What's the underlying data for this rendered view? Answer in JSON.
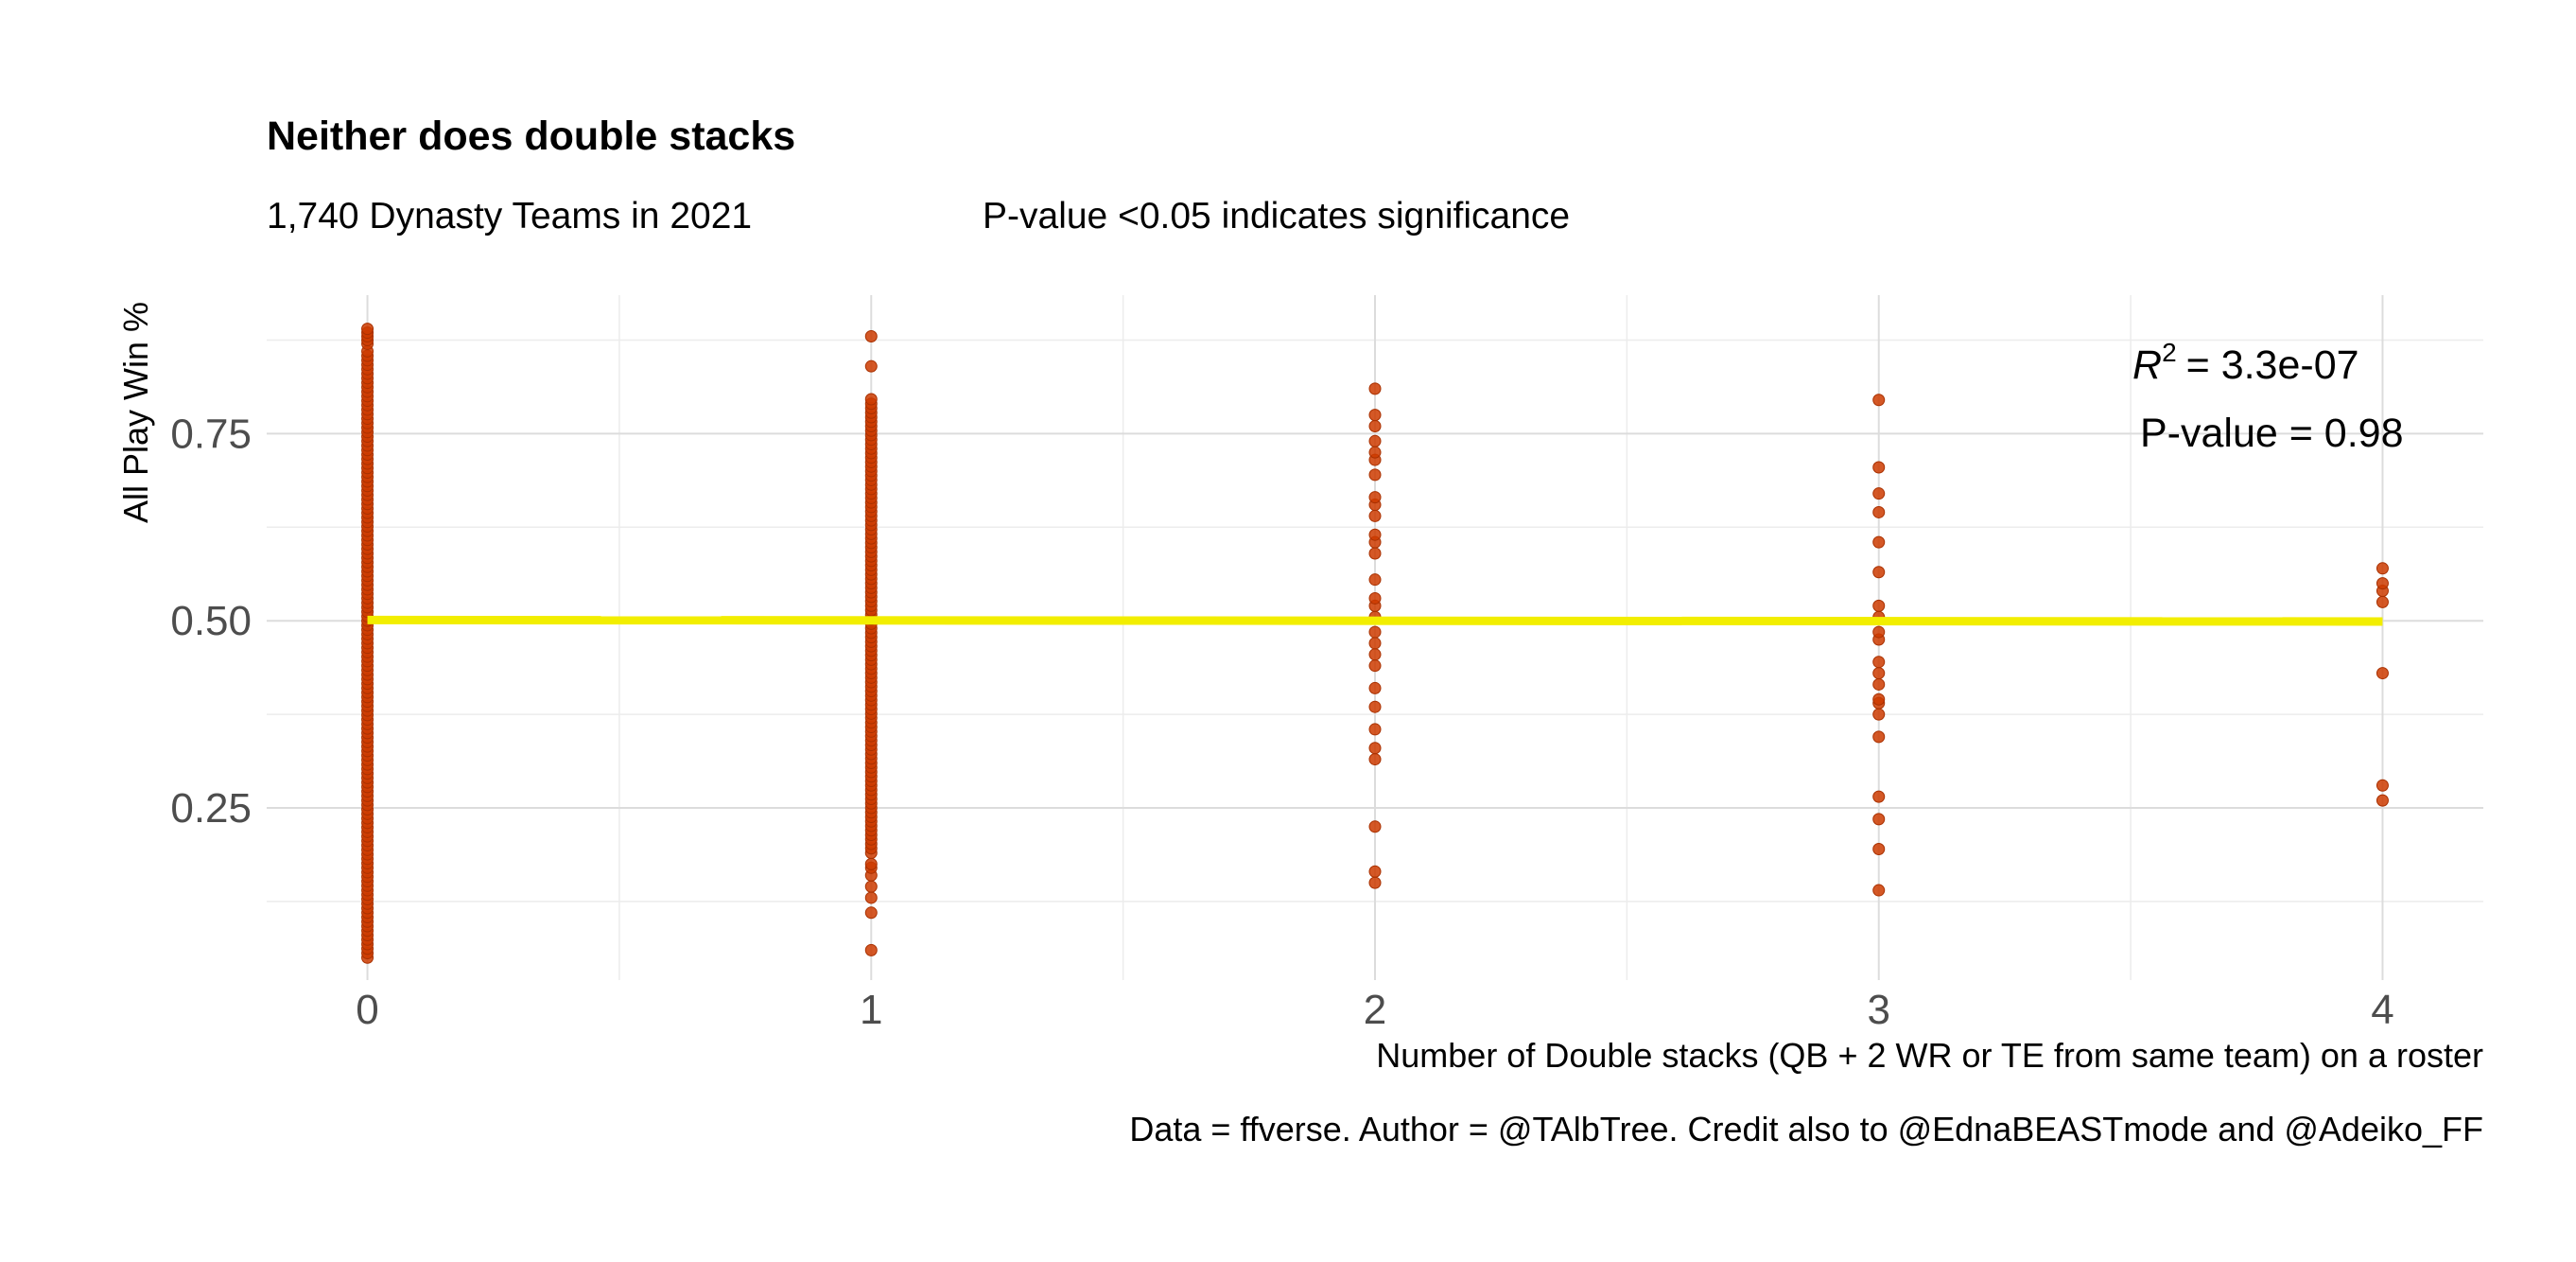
{
  "chart_data": {
    "type": "scatter",
    "title": "Neither does double stacks",
    "subtitle_left": "1,740 Dynasty Teams in 2021",
    "subtitle_right": "P-value <0.05 indicates significance",
    "xlabel": "Number of Double stacks (QB + 2 WR or TE from same team) on a roster",
    "ylabel": "All Play Win %",
    "caption": "Data = ffverse. Author = @TAlbTree. Credit also to @EdnaBEASTmode and @Adeiko_FF",
    "x_ticks": [
      0,
      1,
      2,
      3,
      4
    ],
    "y_ticks": [
      0.25,
      0.5,
      0.75
    ],
    "y_tick_labels": [
      "0.25",
      "0.50",
      "0.75"
    ],
    "xlim": [
      -0.2,
      4.2
    ],
    "ylim": [
      0.02,
      0.935
    ],
    "grid": true,
    "point_color": "#cc3b00",
    "fit_color": "#f2ee00",
    "annotation": {
      "r2_symbol": "R",
      "r2_exponent": "2",
      "r2_value": "= 3.3e-07",
      "pvalue": "P-value = 0.98"
    },
    "fit_line": {
      "x": [
        0,
        4
      ],
      "y": [
        0.501,
        0.499
      ]
    },
    "series": [
      {
        "x": 0,
        "y_range": [
          0.05,
          0.89
        ],
        "dense_y": [
          0.05,
          0.86
        ],
        "extra_y": [
          0.87,
          0.875,
          0.88,
          0.885,
          0.89
        ]
      },
      {
        "x": 1,
        "y_range": [
          0.06,
          0.88
        ],
        "dense_y": [
          0.19,
          0.8
        ],
        "extra_y": [
          0.06,
          0.11,
          0.13,
          0.145,
          0.16,
          0.17,
          0.175,
          0.84,
          0.88
        ]
      },
      {
        "x": 2,
        "y": [
          0.15,
          0.165,
          0.225,
          0.315,
          0.33,
          0.355,
          0.385,
          0.41,
          0.44,
          0.455,
          0.47,
          0.485,
          0.505,
          0.52,
          0.53,
          0.555,
          0.59,
          0.605,
          0.615,
          0.64,
          0.655,
          0.665,
          0.695,
          0.715,
          0.725,
          0.74,
          0.76,
          0.775,
          0.81
        ]
      },
      {
        "x": 3,
        "y": [
          0.14,
          0.195,
          0.235,
          0.265,
          0.345,
          0.375,
          0.39,
          0.395,
          0.415,
          0.43,
          0.445,
          0.475,
          0.485,
          0.505,
          0.52,
          0.565,
          0.605,
          0.645,
          0.67,
          0.705,
          0.795
        ]
      },
      {
        "x": 4,
        "y": [
          0.26,
          0.28,
          0.43,
          0.525,
          0.54,
          0.55,
          0.57
        ]
      }
    ]
  }
}
